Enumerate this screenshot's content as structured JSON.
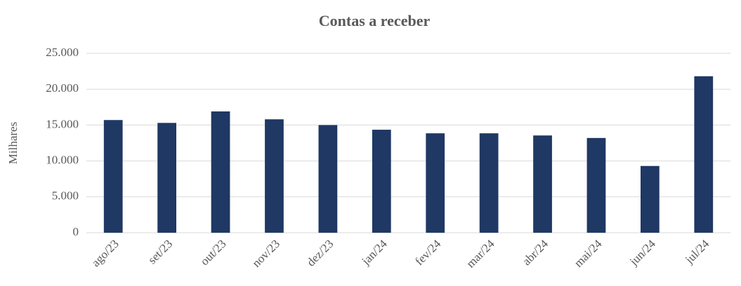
{
  "chart_data": {
    "type": "bar",
    "title": "Contas a receber",
    "y_label": "Milhares",
    "categories": [
      "ago/23",
      "set/23",
      "out/23",
      "nov/23",
      "dez/23",
      "jan/24",
      "fev/24",
      "mar/24",
      "abr/24",
      "mai/24",
      "jun/24",
      "jul/24"
    ],
    "values": [
      15700,
      15300,
      16900,
      15800,
      15000,
      14350,
      13850,
      13850,
      13550,
      13200,
      9300,
      21800
    ],
    "color": "#1f3864",
    "ylim": [
      0,
      25000
    ],
    "yticks": [
      0,
      {
        "value": 5000,
        "label": "5.000"
      },
      {
        "value": 10000,
        "label": "10.000"
      },
      {
        "value": 15000,
        "label": "15.000"
      },
      {
        "value": 20000,
        "label": "20.000"
      },
      {
        "value": 25000,
        "label": "25.000"
      }
    ],
    "grid": true
  }
}
